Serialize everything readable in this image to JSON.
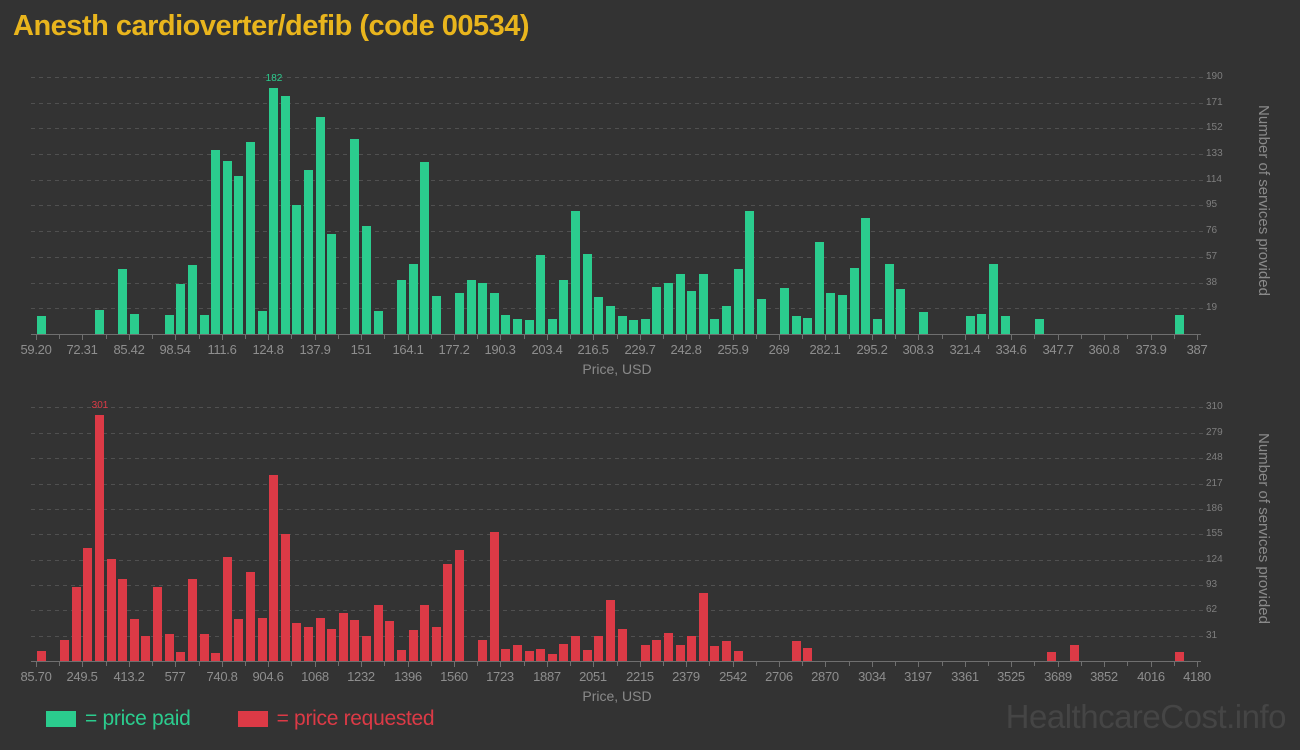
{
  "title": "Anesth cardioverter/defib (code 00534)",
  "watermark": "HealthcareCost.info",
  "legend": {
    "paid": "= price paid",
    "requested": "= price requested"
  },
  "colors": {
    "background": "#333333",
    "paid": "#2bcc8e",
    "requested": "#dc3a46",
    "title": "#e9b51d",
    "axis_text": "#8e8e8e",
    "y_axis_text": "#7e7e7e",
    "axis_title": "#8a8a8a",
    "gridline": "#505050",
    "axis_line": "#6f6f6f",
    "watermark": "#454545"
  },
  "chart_data": [
    {
      "type": "bar",
      "name": "price paid",
      "color_key": "paid",
      "xlabel": "Price, USD",
      "ylabel": "Number of services provided",
      "x_range": [
        59.2,
        387
      ],
      "bin_count": 100,
      "ylim": [
        0,
        198
      ],
      "grid": true,
      "legend_position": "bottom",
      "x_tick_labels": [
        "59.20",
        "72.31",
        "85.42",
        "98.54",
        "111.6",
        "124.8",
        "137.9",
        "151",
        "164.1",
        "177.2",
        "190.3",
        "203.4",
        "216.5",
        "229.7",
        "242.8",
        "255.9",
        "269",
        "282.1",
        "295.2",
        "308.3",
        "321.4",
        "334.6",
        "347.7",
        "360.8",
        "373.9",
        "387"
      ],
      "y_tick_labels": [
        19,
        38,
        57,
        76,
        95,
        114,
        133,
        152,
        171,
        190
      ],
      "peak_label": "182",
      "bars": [
        [
          0,
          13
        ],
        [
          5,
          18
        ],
        [
          7,
          48
        ],
        [
          8,
          15
        ],
        [
          11,
          14
        ],
        [
          12,
          37
        ],
        [
          13,
          51
        ],
        [
          14,
          14
        ],
        [
          15,
          136
        ],
        [
          16,
          128
        ],
        [
          17,
          117
        ],
        [
          18,
          142
        ],
        [
          19,
          17
        ],
        [
          20,
          182
        ],
        [
          21,
          176
        ],
        [
          22,
          95
        ],
        [
          23,
          121
        ],
        [
          24,
          160
        ],
        [
          25,
          74
        ],
        [
          27,
          144
        ],
        [
          28,
          80
        ],
        [
          29,
          17
        ],
        [
          31,
          40
        ],
        [
          32,
          52
        ],
        [
          33,
          127
        ],
        [
          34,
          28
        ],
        [
          36,
          30
        ],
        [
          37,
          40
        ],
        [
          38,
          38
        ],
        [
          39,
          30
        ],
        [
          40,
          14
        ],
        [
          41,
          11
        ],
        [
          42,
          10
        ],
        [
          43,
          58
        ],
        [
          44,
          11
        ],
        [
          45,
          40
        ],
        [
          46,
          91
        ],
        [
          47,
          59
        ],
        [
          48,
          27
        ],
        [
          49,
          21
        ],
        [
          50,
          13
        ],
        [
          51,
          10
        ],
        [
          52,
          11
        ],
        [
          53,
          35
        ],
        [
          54,
          38
        ],
        [
          55,
          44
        ],
        [
          56,
          32
        ],
        [
          57,
          44
        ],
        [
          58,
          11
        ],
        [
          59,
          21
        ],
        [
          60,
          48
        ],
        [
          61,
          91
        ],
        [
          62,
          26
        ],
        [
          64,
          34
        ],
        [
          65,
          13
        ],
        [
          66,
          12
        ],
        [
          67,
          68
        ],
        [
          68,
          30
        ],
        [
          69,
          29
        ],
        [
          70,
          49
        ],
        [
          71,
          86
        ],
        [
          72,
          11
        ],
        [
          73,
          52
        ],
        [
          74,
          33
        ],
        [
          76,
          16
        ],
        [
          80,
          13
        ],
        [
          81,
          15
        ],
        [
          82,
          52
        ],
        [
          83,
          13
        ],
        [
          86,
          11
        ],
        [
          98,
          14
        ]
      ]
    },
    {
      "type": "bar",
      "name": "price requested",
      "color_key": "requested",
      "xlabel": "Price, USD",
      "ylabel": "Number of services provided",
      "x_range": [
        85.7,
        4180
      ],
      "bin_count": 100,
      "ylim": [
        0,
        324
      ],
      "grid": true,
      "legend_position": "bottom",
      "x_tick_labels": [
        "85.70",
        "249.5",
        "413.2",
        "577",
        "740.8",
        "904.6",
        "1068",
        "1232",
        "1396",
        "1560",
        "1723",
        "1887",
        "2051",
        "2215",
        "2379",
        "2542",
        "2706",
        "2870",
        "3034",
        "3197",
        "3361",
        "3525",
        "3689",
        "3852",
        "4016",
        "4180"
      ],
      "y_tick_labels": [
        31,
        62,
        93,
        124,
        155,
        186,
        217,
        248,
        279,
        310
      ],
      "peak_label": "301",
      "bars": [
        [
          0,
          12
        ],
        [
          2,
          26
        ],
        [
          3,
          91
        ],
        [
          4,
          138
        ],
        [
          5,
          301
        ],
        [
          6,
          125
        ],
        [
          7,
          100
        ],
        [
          8,
          51
        ],
        [
          9,
          30
        ],
        [
          10,
          90
        ],
        [
          11,
          33
        ],
        [
          12,
          11
        ],
        [
          13,
          100
        ],
        [
          14,
          33
        ],
        [
          15,
          10
        ],
        [
          16,
          127
        ],
        [
          17,
          51
        ],
        [
          18,
          109
        ],
        [
          19,
          52
        ],
        [
          20,
          227
        ],
        [
          21,
          155
        ],
        [
          22,
          46
        ],
        [
          23,
          41
        ],
        [
          24,
          53
        ],
        [
          25,
          39
        ],
        [
          26,
          59
        ],
        [
          27,
          50
        ],
        [
          28,
          30
        ],
        [
          29,
          68
        ],
        [
          30,
          49
        ],
        [
          31,
          14
        ],
        [
          32,
          38
        ],
        [
          33,
          68
        ],
        [
          34,
          41
        ],
        [
          35,
          119
        ],
        [
          36,
          136
        ],
        [
          38,
          26
        ],
        [
          39,
          158
        ],
        [
          40,
          15
        ],
        [
          41,
          19
        ],
        [
          42,
          12
        ],
        [
          43,
          15
        ],
        [
          44,
          9
        ],
        [
          45,
          21
        ],
        [
          46,
          31
        ],
        [
          47,
          14
        ],
        [
          48,
          30
        ],
        [
          49,
          74
        ],
        [
          50,
          39
        ],
        [
          52,
          20
        ],
        [
          53,
          26
        ],
        [
          54,
          34
        ],
        [
          55,
          19
        ],
        [
          56,
          30
        ],
        [
          57,
          83
        ],
        [
          58,
          18
        ],
        [
          59,
          25
        ],
        [
          60,
          12
        ],
        [
          65,
          25
        ],
        [
          66,
          16
        ],
        [
          87,
          11
        ],
        [
          89,
          19
        ],
        [
          98,
          11
        ]
      ]
    }
  ]
}
